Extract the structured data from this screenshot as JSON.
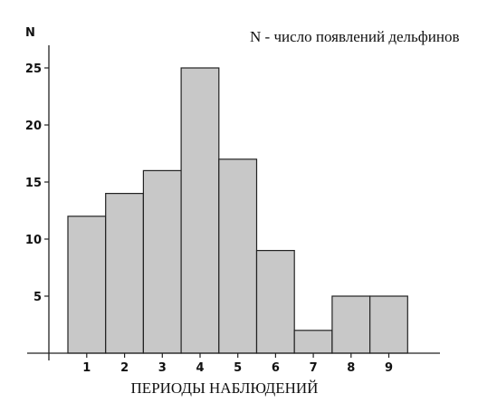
{
  "chart_data": {
    "type": "bar",
    "categories": [
      "1",
      "2",
      "3",
      "4",
      "5",
      "6",
      "7",
      "8",
      "9"
    ],
    "values": [
      12,
      14,
      16,
      25,
      17,
      9,
      2,
      5,
      5
    ],
    "ylabel": "N",
    "xlabel": "ПЕРИОДЫ НАБЛЮДЕНИЙ",
    "annotation": "N - число появлений дельфинов",
    "yticks": [
      5,
      10,
      15,
      20,
      25
    ],
    "ylim": [
      0,
      27
    ],
    "grid": false,
    "bar_color": "#c8c8c8",
    "edge_color": "#222222"
  }
}
